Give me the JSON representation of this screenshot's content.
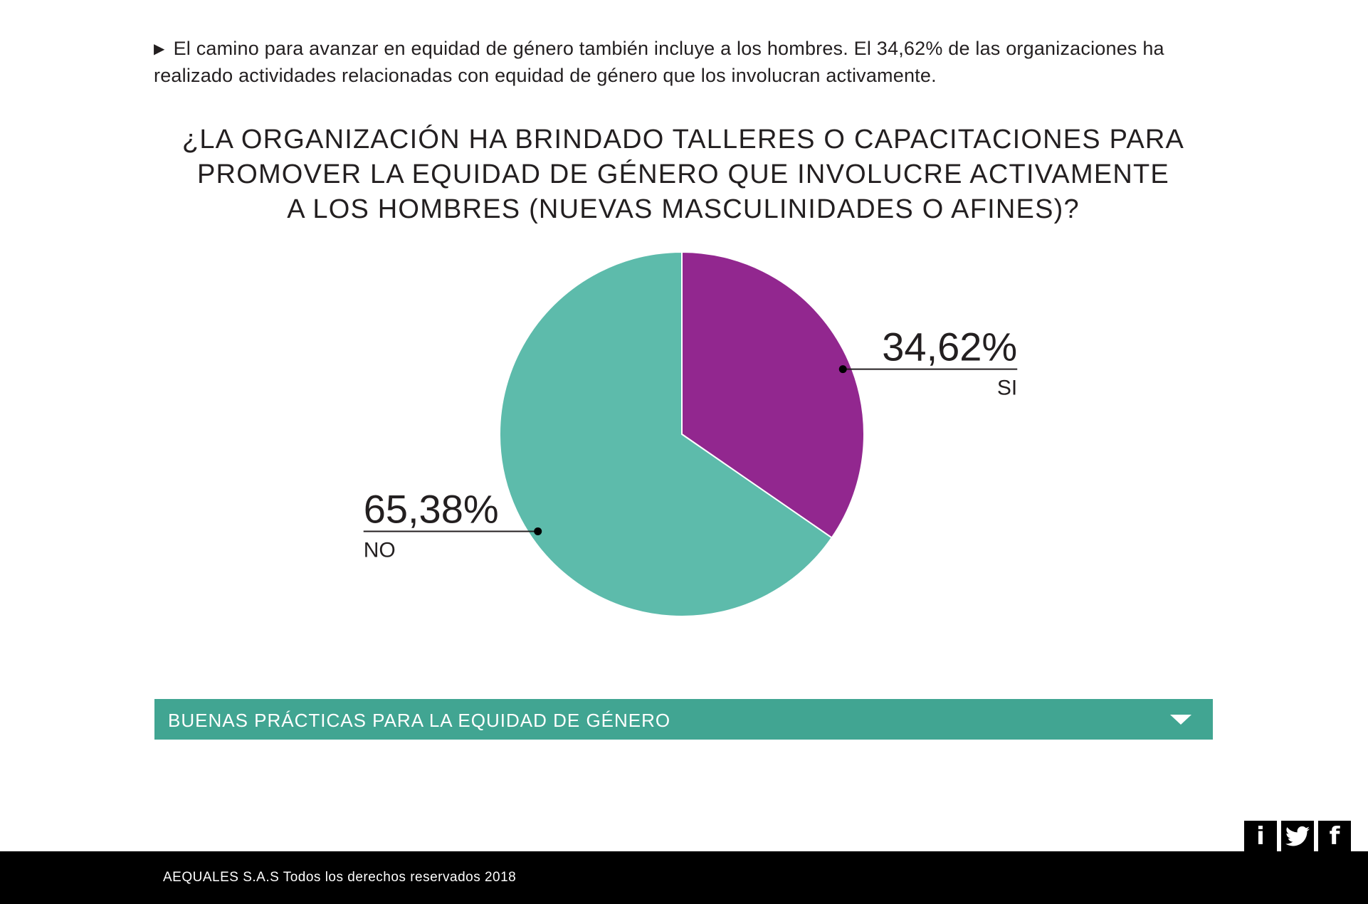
{
  "intro": {
    "bullet": "▶",
    "text": "El camino para avanzar en equidad de género también incluye a los hombres. El 34,62% de las organizaciones ha realizado actividades relacionadas con equidad de género que los involucran activamente."
  },
  "question": {
    "line1": "¿LA ORGANIZACIÓN HA BRINDADO TALLERES O CAPACITACIONES PARA",
    "line2": "PROMOVER LA EQUIDAD DE GÉNERO QUE INVOLUCRE ACTIVAMENTE",
    "line3": "A LOS HOMBRES (NUEVAS MASCULINIDADES O AFINES)?"
  },
  "chart_data": {
    "type": "pie",
    "title": "¿LA ORGANIZACIÓN HA BRINDADO TALLERES O CAPACITACIONES PARA PROMOVER LA EQUIDAD DE GÉNERO QUE INVOLUCRE ACTIVAMENTE A LOS HOMBRES (NUEVAS MASCULINIDADES O AFINES)?",
    "categories": [
      "SI",
      "NO"
    ],
    "values": [
      34.62,
      65.38
    ],
    "value_labels": [
      "34,62%",
      "65,38%"
    ],
    "colors": [
      "#92278f",
      "#5dbbab"
    ]
  },
  "accordion": {
    "label": "BUENAS PRÁCTICAS PARA LA EQUIDAD DE GÉNERO",
    "icon": "triangle-down-icon",
    "color": "#41a592"
  },
  "social": [
    {
      "name": "info-icon",
      "glyph": "i"
    },
    {
      "name": "twitter-icon",
      "glyph": "🐦"
    },
    {
      "name": "facebook-icon",
      "glyph": "f"
    }
  ],
  "footer": {
    "text": "AEQUALES  S.A.S Todos los derechos reservados 2018"
  }
}
